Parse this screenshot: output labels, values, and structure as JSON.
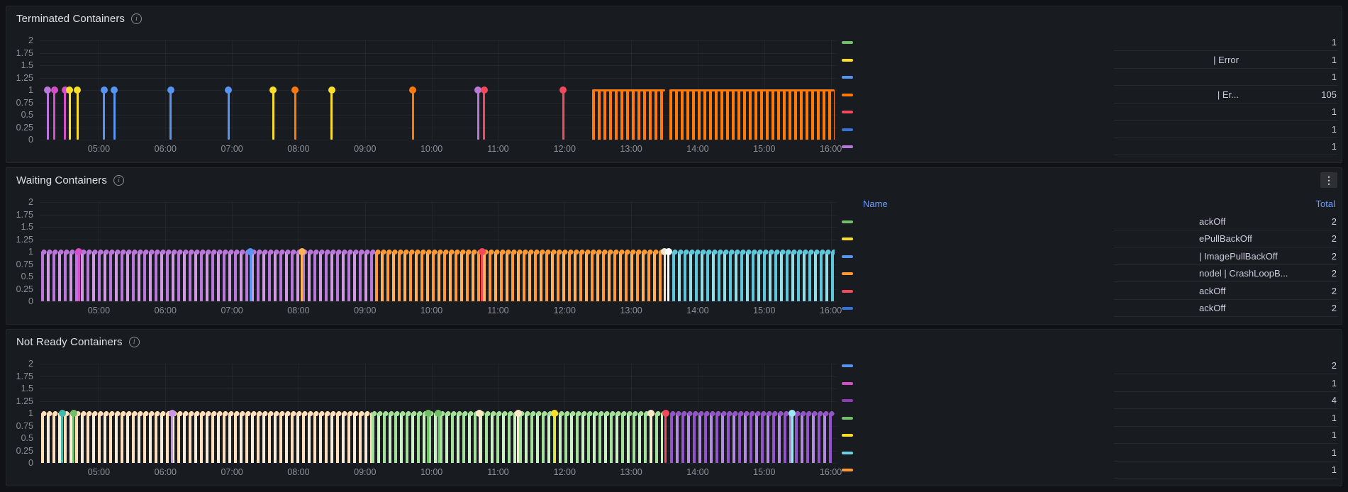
{
  "theme": {
    "page_bg": "#111217",
    "panel_bg": "#181B1F",
    "panel_border": "#25272E",
    "title_text": "#E0E1E6",
    "table_text": "#CCCCDC",
    "axis_text": "rgba(204,204,220,0.65)",
    "grid_line": "rgba(204,204,220,0.06)",
    "row_separator": "rgba(204,204,220,0.09)",
    "header_link": "#6E9FFF",
    "icon_dim": "#8E9198",
    "menu_button_bg": "rgba(204,204,220,0.12)"
  },
  "icons": {
    "info": "i",
    "menu": "⋮"
  },
  "axis": {
    "t_min": 4.1,
    "t_max": 16.1,
    "v_min": 0,
    "v_max": 2,
    "y_ticks": [
      "2",
      "1.75",
      "1.5",
      "1.25",
      "1",
      "0.75",
      "0.5",
      "0.25",
      "0"
    ],
    "y_values": [
      2,
      1.75,
      1.5,
      1.25,
      1,
      0.75,
      0.5,
      0.25,
      0
    ],
    "x_ticks": [
      {
        "label": "05:00",
        "hour": 5
      },
      {
        "label": "06:00",
        "hour": 6
      },
      {
        "label": "07:00",
        "hour": 7
      },
      {
        "label": "08:00",
        "hour": 8
      },
      {
        "label": "09:00",
        "hour": 9
      },
      {
        "label": "10:00",
        "hour": 10
      },
      {
        "label": "11:00",
        "hour": 11
      },
      {
        "label": "12:00",
        "hour": 12
      },
      {
        "label": "13:00",
        "hour": 13
      },
      {
        "label": "14:00",
        "hour": 14
      },
      {
        "label": "15:00",
        "hour": 15
      },
      {
        "label": "16:00",
        "hour": 16
      }
    ]
  },
  "panels": [
    {
      "title": "Terminated Containers",
      "has_menu": false,
      "legend_colors": [
        "#73BF69",
        "#FADE2A",
        "#5794F2",
        "#FF780A",
        "#F2495C",
        "#3274D9",
        "#B877D9"
      ],
      "table": {
        "name_align": "right",
        "rows": [
          {
            "name": "",
            "value": "1"
          },
          {
            "name": "| Error",
            "value": "1"
          },
          {
            "name": "",
            "value": "1"
          },
          {
            "name": "| Er...",
            "value": "105"
          },
          {
            "name": "",
            "value": "1"
          },
          {
            "name": "",
            "value": "1"
          },
          {
            "name": "",
            "value": "1"
          }
        ]
      }
    },
    {
      "title": "Waiting Containers",
      "has_menu": true,
      "legend_colors": [
        "#73BF69",
        "#FADE2A",
        "#5794F2",
        "#FF9830",
        "#F2495C",
        "#3274D9"
      ],
      "table": {
        "name_align": "left",
        "header": {
          "name": "Name",
          "total": "Total"
        },
        "rows": [
          {
            "name": "ackOff",
            "value": "2"
          },
          {
            "name": "ePullBackOff",
            "value": "2"
          },
          {
            "name": "| ImagePullBackOff",
            "value": "2"
          },
          {
            "name": "nodel | CrashLoopB...",
            "value": "2"
          },
          {
            "name": "ackOff",
            "value": "2"
          },
          {
            "name": "ackOff",
            "value": "2"
          }
        ]
      }
    },
    {
      "title": "Not Ready Containers",
      "has_menu": false,
      "legend_colors": [
        "#5794F2",
        "#D64FC8",
        "#8F3BB8",
        "#73BF69",
        "#FADE2A",
        "#6ED0E0",
        "#FF9830"
      ],
      "table": {
        "name_align": "right",
        "rows": [
          {
            "name": "",
            "value": "2"
          },
          {
            "name": "",
            "value": "1"
          },
          {
            "name": "",
            "value": "4"
          },
          {
            "name": "",
            "value": "1"
          },
          {
            "name": "",
            "value": "1"
          },
          {
            "name": "",
            "value": "1"
          },
          {
            "name": "",
            "value": "1"
          }
        ]
      }
    }
  ],
  "chart_data": [
    {
      "type": "bar",
      "title": "Terminated Containers",
      "x_axis": "time",
      "x_range_hours": [
        4.1,
        16.1
      ],
      "ylim": [
        0,
        2
      ],
      "event_value": 1,
      "events": [
        {
          "t": 4.23,
          "color": "#B877D9"
        },
        {
          "t": 4.33,
          "color": "#D64FC8"
        },
        {
          "t": 4.49,
          "color": "#D64FC8"
        },
        {
          "t": 4.56,
          "color": "#FADE2A"
        },
        {
          "t": 4.68,
          "color": "#FADE2A"
        },
        {
          "t": 5.08,
          "color": "#5794F2"
        },
        {
          "t": 5.23,
          "color": "#5794F2"
        },
        {
          "t": 6.08,
          "color": "#5794F2"
        },
        {
          "t": 6.95,
          "color": "#5794F2"
        },
        {
          "t": 7.62,
          "color": "#FADE2A"
        },
        {
          "t": 7.95,
          "color": "#FF780A"
        },
        {
          "t": 8.5,
          "color": "#FADE2A"
        },
        {
          "t": 9.72,
          "color": "#FF780A"
        },
        {
          "t": 10.7,
          "color": "#B877D9"
        },
        {
          "t": 10.79,
          "color": "#F2495C"
        },
        {
          "t": 11.98,
          "color": "#F2495C"
        }
      ],
      "segments": [
        {
          "start": 12.41,
          "end": 13.51,
          "color": "#FF780A",
          "top": "line"
        },
        {
          "start": 13.57,
          "end": 16.06,
          "color": "#FF780A",
          "top": "line"
        }
      ]
    },
    {
      "type": "bar",
      "title": "Waiting Containers",
      "x_axis": "time",
      "x_range_hours": [
        4.1,
        16.1
      ],
      "ylim": [
        0,
        2
      ],
      "event_value": 1,
      "segments": [
        {
          "start": 4.13,
          "end": 9.15,
          "color": "#B877D9",
          "color2": "#CE9BE3",
          "top": "dots"
        },
        {
          "start": 9.15,
          "end": 13.47,
          "color": "#FF9830",
          "color2": "#FFB357",
          "top": "dots"
        },
        {
          "start": 13.62,
          "end": 16.06,
          "color": "#5EC6D8",
          "color2": "#93DCE8",
          "top": "dots"
        }
      ],
      "events": [
        {
          "t": 4.7,
          "color": "#D64FC8"
        },
        {
          "t": 7.28,
          "color": "#5794F2"
        },
        {
          "t": 8.05,
          "color": "#FFB357"
        },
        {
          "t": 10.76,
          "color": "#F2495C"
        },
        {
          "t": 13.5,
          "color": "#EFE6D5"
        },
        {
          "t": 13.56,
          "color": "#FFFFFF"
        }
      ]
    },
    {
      "type": "bar",
      "title": "Not Ready Containers",
      "x_axis": "time",
      "x_range_hours": [
        4.1,
        16.1
      ],
      "ylim": [
        0,
        2
      ],
      "event_value": 1,
      "segments": [
        {
          "start": 4.13,
          "end": 9.1,
          "color": "#FFDFB8",
          "color2": "#F8ECD9",
          "top": "dots"
        },
        {
          "start": 9.1,
          "end": 13.48,
          "color": "#A5E09A",
          "color2": "#CDF0C5",
          "top": "dots"
        },
        {
          "start": 13.58,
          "end": 16.06,
          "color": "#9254C8",
          "color2": "#B48BDC",
          "top": "dots"
        }
      ],
      "events": [
        {
          "t": 4.45,
          "color": "#45B8A9"
        },
        {
          "t": 4.62,
          "color": "#73BF69"
        },
        {
          "t": 6.1,
          "color": "#CA95E5"
        },
        {
          "t": 9.95,
          "color": "#73BF69"
        },
        {
          "t": 10.1,
          "color": "#73BF69"
        },
        {
          "t": 10.72,
          "color": "#FFE8C8"
        },
        {
          "t": 11.3,
          "color": "#FFE8C8"
        },
        {
          "t": 11.85,
          "color": "#FADE2A"
        },
        {
          "t": 13.3,
          "color": "#FFE8C8"
        },
        {
          "t": 13.52,
          "color": "#F2495C"
        },
        {
          "t": 15.42,
          "color": "#9FE7F2"
        }
      ]
    }
  ]
}
